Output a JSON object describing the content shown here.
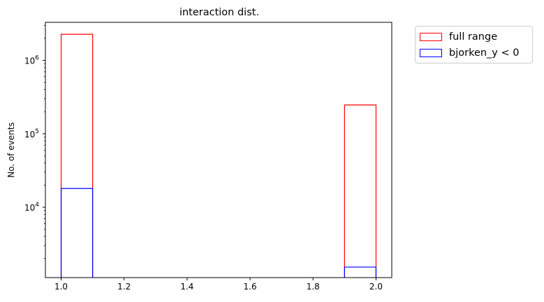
{
  "chart_data": {
    "type": "bar",
    "title": "interaction dist.",
    "xlabel": "",
    "ylabel": "No. of events",
    "yscale": "log",
    "xlim": [
      0.95,
      2.05
    ],
    "ylim": [
      1100,
      3300000
    ],
    "x_ticks": [
      "1.0",
      "1.2",
      "1.4",
      "1.6",
      "1.8",
      "2.0"
    ],
    "y_ticks": [
      {
        "base": "10",
        "exp": "4",
        "value": 10000
      },
      {
        "base": "10",
        "exp": "5",
        "value": 100000
      },
      {
        "base": "10",
        "exp": "6",
        "value": 1000000
      }
    ],
    "bin_edges": [
      1.0,
      1.1,
      1.2,
      1.3,
      1.4,
      1.5,
      1.6,
      1.7,
      1.8,
      1.9,
      2.0
    ],
    "histtype": "step",
    "grid": false,
    "legend_position": "outside upper right",
    "series": [
      {
        "name": "full range",
        "color": "#ff0000",
        "counts": [
          2270000,
          0,
          0,
          0,
          0,
          0,
          0,
          0,
          0,
          247000
        ]
      },
      {
        "name": "bjorken_y < 0",
        "color": "#0000ff",
        "counts": [
          18000,
          0,
          0,
          0,
          0,
          0,
          0,
          0,
          0,
          1530
        ]
      }
    ]
  }
}
